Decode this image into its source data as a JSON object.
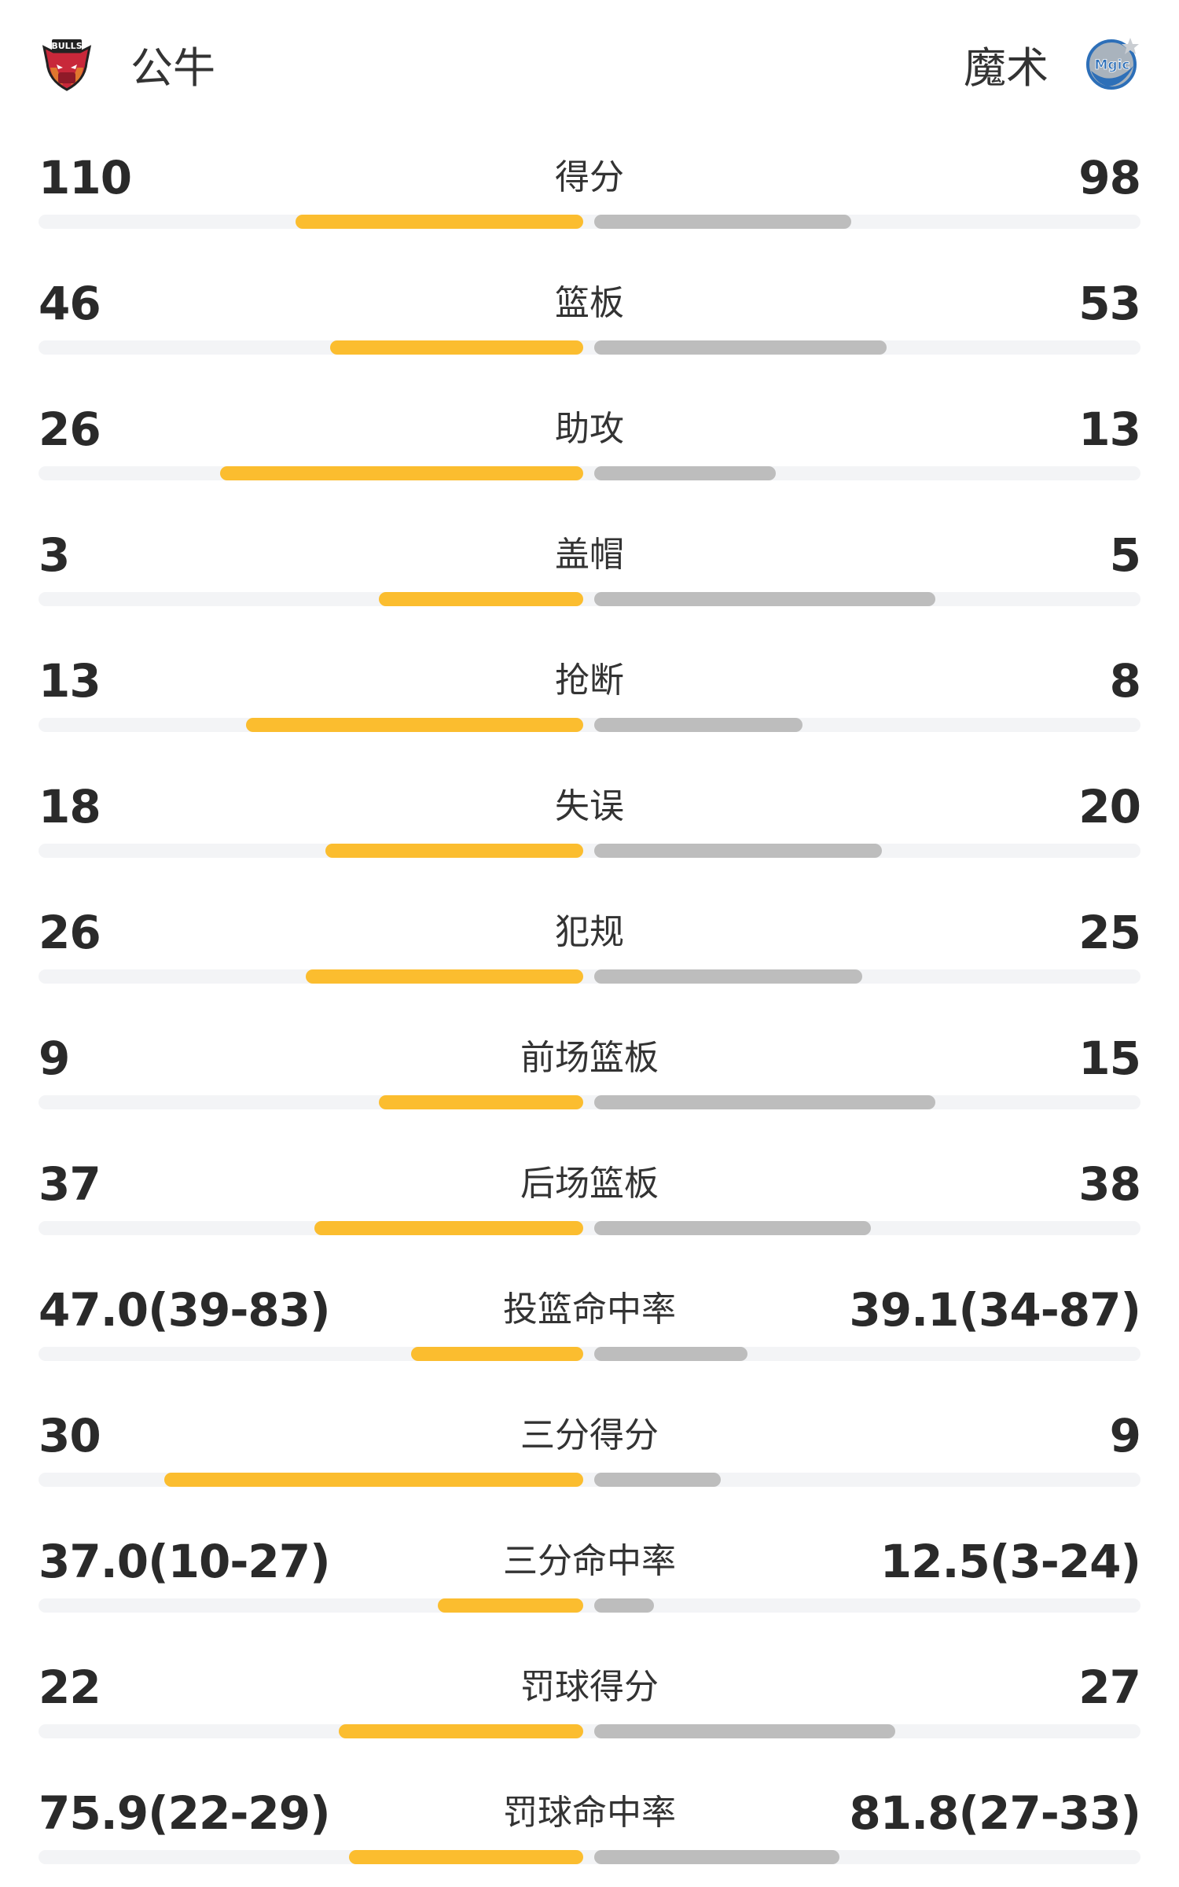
{
  "home": {
    "name": "公牛",
    "logo_text": "BULLS",
    "color": "#fbbd2f"
  },
  "away": {
    "name": "魔术",
    "logo_text": "Magic",
    "color": "#bdbdbd"
  },
  "stats": [
    {
      "label": "得分",
      "home": "110",
      "away": "98",
      "home_fill": 0.528,
      "away_fill": 0.471
    },
    {
      "label": "篮板",
      "home": "46",
      "away": "53",
      "home_fill": 0.464,
      "away_fill": 0.535
    },
    {
      "label": "助攻",
      "home": "26",
      "away": "13",
      "home_fill": 0.667,
      "away_fill": 0.333
    },
    {
      "label": "盖帽",
      "home": "3",
      "away": "5",
      "home_fill": 0.375,
      "away_fill": 0.625
    },
    {
      "label": "抢断",
      "home": "13",
      "away": "8",
      "home_fill": 0.619,
      "away_fill": 0.381
    },
    {
      "label": "失误",
      "home": "18",
      "away": "20",
      "home_fill": 0.474,
      "away_fill": 0.526
    },
    {
      "label": "犯规",
      "home": "26",
      "away": "25",
      "home_fill": 0.51,
      "away_fill": 0.49
    },
    {
      "label": "前场篮板",
      "home": "9",
      "away": "15",
      "home_fill": 0.375,
      "away_fill": 0.625
    },
    {
      "label": "后场篮板",
      "home": "37",
      "away": "38",
      "home_fill": 0.493,
      "away_fill": 0.507
    },
    {
      "label": "投篮命中率",
      "home": "47.0(39-83)",
      "away": "39.1(34-87)",
      "home_fill": 0.316,
      "away_fill": 0.28
    },
    {
      "label": "三分得分",
      "home": "30",
      "away": "9",
      "home_fill": 0.769,
      "away_fill": 0.231
    },
    {
      "label": "三分命中率",
      "home": "37.0(10-27)",
      "away": "12.5(3-24)",
      "home_fill": 0.267,
      "away_fill": 0.11
    },
    {
      "label": "罚球得分",
      "home": "22",
      "away": "27",
      "home_fill": 0.449,
      "away_fill": 0.551
    },
    {
      "label": "罚球命中率",
      "home": "75.9(22-29)",
      "away": "81.8(27-33)",
      "home_fill": 0.43,
      "away_fill": 0.449
    }
  ]
}
